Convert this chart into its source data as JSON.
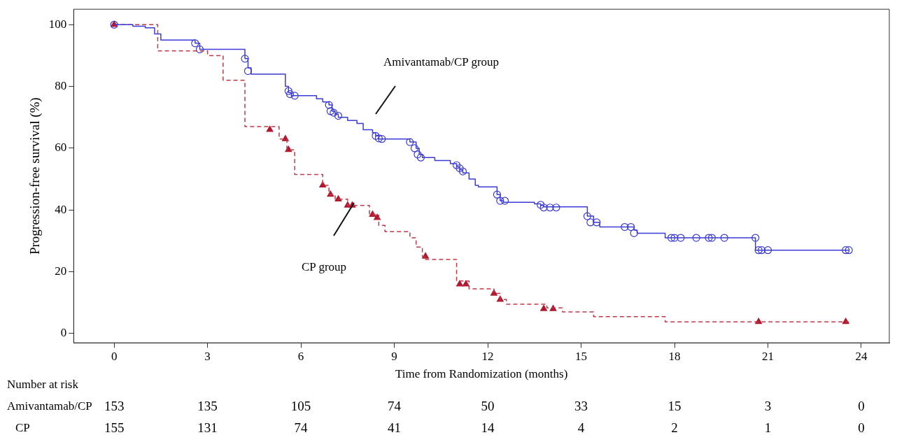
{
  "chart_data": {
    "type": "step",
    "xlabel": "Time from Randomization (months)",
    "ylabel": "Progression-free survival (%)",
    "xlim": [
      -1.3,
      24.9
    ],
    "xticks": [
      0,
      3,
      6,
      9,
      12,
      15,
      18,
      21,
      24
    ],
    "ylim": [
      -3,
      105
    ],
    "yticks": [
      0,
      20,
      40,
      60,
      80,
      100
    ],
    "legend": false,
    "series": [
      {
        "color": "#3b3bd6",
        "line_style": "solid",
        "x": [
          0,
          0.6,
          1.0,
          1.3,
          1.5,
          2.6,
          2.75,
          4.2,
          4.3,
          4.4,
          5.5,
          5.6,
          5.7,
          6.5,
          6.7,
          6.9,
          7.0,
          7.1,
          7.2,
          7.5,
          7.8,
          8.0,
          8.3,
          8.4,
          8.5,
          9.5,
          9.7,
          9.8,
          9.9,
          10.3,
          10.8,
          11.0,
          11.1,
          11.2,
          11.4,
          11.6,
          11.7,
          12.3,
          12.4,
          12.5,
          13.5,
          13.7,
          13.8,
          15.2,
          15.4,
          15.6,
          16.7,
          16.8,
          17.7,
          20.6,
          23.6
        ],
        "values": [
          100,
          99.5,
          99,
          97,
          95,
          94,
          92,
          89,
          86,
          84,
          80,
          78,
          77,
          76,
          75,
          74,
          72,
          71,
          70,
          69,
          68,
          66,
          65,
          64,
          63,
          62,
          60,
          58,
          57,
          56,
          55,
          54,
          53,
          52,
          50,
          48,
          47.5,
          45,
          43,
          42.5,
          42,
          41.5,
          41,
          38,
          36,
          34.5,
          33.5,
          32.5,
          31,
          27,
          27
        ]
      },
      {
        "color": "#c0394b",
        "line_style": "dashed",
        "x": [
          0,
          1.4,
          3.0,
          3.5,
          4.2,
          5.3,
          5.55,
          5.8,
          6.7,
          6.9,
          7.1,
          7.5,
          8.2,
          8.5,
          8.7,
          9.5,
          9.7,
          9.9,
          10.0,
          11.0,
          11.4,
          12.2,
          12.4,
          12.6,
          13.9,
          14.4,
          15.4,
          17.7,
          23.6
        ],
        "values": [
          100,
          91.5,
          90,
          82,
          67,
          63,
          59.5,
          51.5,
          48,
          45,
          43.5,
          41.5,
          38.5,
          35,
          33,
          31,
          28,
          25,
          24,
          17,
          14.5,
          13,
          11,
          9.5,
          8.3,
          7,
          5.5,
          3.8,
          3.8
        ]
      },
      {
        "type": "scatter",
        "color": "#3b3bd6",
        "marker": "circle",
        "x": [
          0,
          2.6,
          2.75,
          4.2,
          4.3,
          5.6,
          5.65,
          5.8,
          6.9,
          6.95,
          7.05,
          7.2,
          8.4,
          8.5,
          8.6,
          9.5,
          9.65,
          9.75,
          9.85,
          11.0,
          11.1,
          11.2,
          12.3,
          12.4,
          12.55,
          13.7,
          13.8,
          14.0,
          14.2,
          15.2,
          15.3,
          15.5,
          16.4,
          16.6,
          16.7,
          17.9,
          18.0,
          18.2,
          18.7,
          19.1,
          19.2,
          19.6,
          20.6,
          20.7,
          20.8,
          21.0,
          23.5,
          23.6
        ],
        "values": [
          100,
          94,
          92,
          89,
          85,
          78.5,
          77.5,
          77,
          74,
          72,
          71.5,
          70.5,
          64,
          63.2,
          63,
          62,
          60,
          58,
          57,
          54.5,
          53.5,
          52.5,
          45,
          43,
          43,
          41.7,
          40.8,
          40.8,
          40.8,
          38,
          36,
          36,
          34.5,
          34.5,
          32.5,
          31,
          31,
          31,
          31,
          31,
          31,
          31,
          31,
          27,
          27,
          27,
          27,
          27
        ]
      },
      {
        "type": "scatter",
        "color": "#b0182e",
        "marker": "triangle",
        "x": [
          0,
          5.0,
          5.5,
          5.6,
          6.7,
          6.95,
          7.2,
          7.5,
          7.65,
          8.3,
          8.45,
          10.0,
          11.1,
          11.3,
          12.2,
          12.4,
          13.8,
          14.1,
          20.7,
          23.5
        ],
        "values": [
          100,
          66,
          63,
          59.5,
          48,
          45,
          43.5,
          41.5,
          41.5,
          38.5,
          37.5,
          25,
          16,
          16,
          13,
          11,
          8,
          8,
          3.8,
          3.8
        ]
      }
    ],
    "annotations": [
      "Amivantamab/CP group",
      "CP group",
      "Number at risk",
      "Amivantamab/CP",
      "153",
      "135",
      "105",
      "74",
      "50",
      "33",
      "15",
      "3",
      "0",
      "CP",
      "155",
      "131",
      "74",
      "41",
      "14",
      "4",
      "2",
      "1",
      "0"
    ]
  }
}
